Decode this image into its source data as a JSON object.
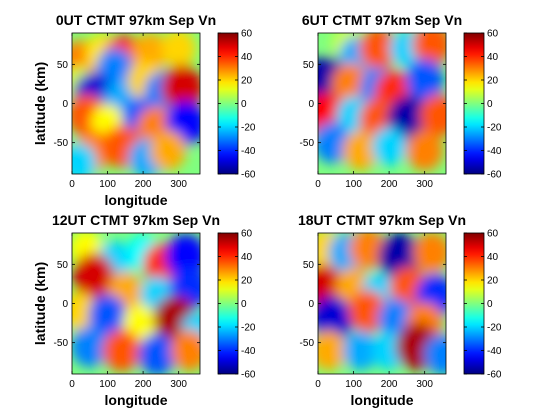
{
  "colormap": "jet",
  "chart_data": [
    {
      "type": "heatmap",
      "title": "0UT CTMT 97km Sep Vn",
      "xlabel": "longitude",
      "ylabel": "latitude (km)",
      "xlim": [
        0,
        360
      ],
      "ylim": [
        -90,
        90
      ],
      "xticks": [
        "0",
        "100",
        "200",
        "300"
      ],
      "yticks": [
        "-50",
        "0",
        "50"
      ],
      "colorbar": {
        "range": [
          -60,
          60
        ],
        "ticks": [
          "60",
          "40",
          "20",
          "0",
          "-20",
          "-40",
          "-60"
        ]
      },
      "features": [
        {
          "lon": 25,
          "lat": 55,
          "value": 30
        },
        {
          "lon": 85,
          "lat": 65,
          "value": 18
        },
        {
          "lon": 145,
          "lat": 60,
          "value": 40
        },
        {
          "lon": 220,
          "lat": 65,
          "value": 25
        },
        {
          "lon": 300,
          "lat": 70,
          "value": 20
        },
        {
          "lon": 120,
          "lat": 45,
          "value": -30
        },
        {
          "lon": 20,
          "lat": 25,
          "value": 10
        },
        {
          "lon": 60,
          "lat": 10,
          "value": -50
        },
        {
          "lon": 140,
          "lat": 5,
          "value": -25
        },
        {
          "lon": 205,
          "lat": 30,
          "value": 20
        },
        {
          "lon": 255,
          "lat": 15,
          "value": -30
        },
        {
          "lon": 310,
          "lat": 20,
          "value": 50
        },
        {
          "lon": 40,
          "lat": -15,
          "value": 35
        },
        {
          "lon": 100,
          "lat": -25,
          "value": 15
        },
        {
          "lon": 195,
          "lat": -20,
          "value": -35
        },
        {
          "lon": 235,
          "lat": -30,
          "value": 30
        },
        {
          "lon": 320,
          "lat": -25,
          "value": -45
        },
        {
          "lon": 60,
          "lat": -60,
          "value": 30
        },
        {
          "lon": 140,
          "lat": -55,
          "value": 35
        },
        {
          "lon": 210,
          "lat": -70,
          "value": -25
        },
        {
          "lon": 270,
          "lat": -60,
          "value": 25
        },
        {
          "lon": 20,
          "lat": -75,
          "value": -20
        }
      ]
    },
    {
      "type": "heatmap",
      "title": "6UT CTMT 97km Sep Vn",
      "xlabel": "",
      "ylabel": "",
      "xlim": [
        0,
        360
      ],
      "ylim": [
        -90,
        90
      ],
      "xticks": [
        "0",
        "100",
        "200",
        "300"
      ],
      "yticks": [
        "-50",
        "0",
        "50"
      ],
      "colorbar": {
        "range": [
          -60,
          60
        ],
        "ticks": [
          "60",
          "40",
          "20",
          "0",
          "-20",
          "-40",
          "-60"
        ]
      },
      "features": [
        {
          "lon": 25,
          "lat": 30,
          "value": -55
        },
        {
          "lon": 85,
          "lat": 75,
          "value": 10
        },
        {
          "lon": 110,
          "lat": 60,
          "value": -25
        },
        {
          "lon": 170,
          "lat": 70,
          "value": 35
        },
        {
          "lon": 250,
          "lat": 70,
          "value": -20
        },
        {
          "lon": 320,
          "lat": 75,
          "value": 35
        },
        {
          "lon": 90,
          "lat": 25,
          "value": 30
        },
        {
          "lon": 170,
          "lat": 20,
          "value": -30
        },
        {
          "lon": 215,
          "lat": 15,
          "value": 40
        },
        {
          "lon": 300,
          "lat": 30,
          "value": -35
        },
        {
          "lon": 20,
          "lat": -15,
          "value": 45
        },
        {
          "lon": 100,
          "lat": -15,
          "value": -20
        },
        {
          "lon": 170,
          "lat": -20,
          "value": 35
        },
        {
          "lon": 255,
          "lat": -20,
          "value": -55
        },
        {
          "lon": 340,
          "lat": -15,
          "value": 35
        },
        {
          "lon": 40,
          "lat": -50,
          "value": -30
        },
        {
          "lon": 120,
          "lat": -60,
          "value": 25
        },
        {
          "lon": 200,
          "lat": -55,
          "value": -20
        },
        {
          "lon": 300,
          "lat": -60,
          "value": 30
        }
      ]
    },
    {
      "type": "heatmap",
      "title": "12UT CTMT 97km Sep Vn",
      "xlabel": "longitude",
      "ylabel": "latitude (km)",
      "xlim": [
        0,
        360
      ],
      "ylim": [
        -90,
        90
      ],
      "xticks": [
        "0",
        "100",
        "200",
        "300"
      ],
      "yticks": [
        "-50",
        "0",
        "50"
      ],
      "colorbar": {
        "range": [
          -60,
          60
        ],
        "ticks": [
          "60",
          "40",
          "20",
          "0",
          "-20",
          "-40",
          "-60"
        ]
      },
      "features": [
        {
          "lon": 40,
          "lat": 70,
          "value": 15
        },
        {
          "lon": 120,
          "lat": 55,
          "value": -20
        },
        {
          "lon": 200,
          "lat": 65,
          "value": -15
        },
        {
          "lon": 255,
          "lat": 50,
          "value": 40
        },
        {
          "lon": 320,
          "lat": 60,
          "value": -45
        },
        {
          "lon": 60,
          "lat": 35,
          "value": 50
        },
        {
          "lon": 150,
          "lat": 15,
          "value": 25
        },
        {
          "lon": 240,
          "lat": 10,
          "value": -20
        },
        {
          "lon": 330,
          "lat": 20,
          "value": -40
        },
        {
          "lon": 20,
          "lat": -10,
          "value": 20
        },
        {
          "lon": 100,
          "lat": -15,
          "value": -35
        },
        {
          "lon": 190,
          "lat": -25,
          "value": 15
        },
        {
          "lon": 290,
          "lat": -20,
          "value": 55
        },
        {
          "lon": 355,
          "lat": -35,
          "value": -20
        },
        {
          "lon": 50,
          "lat": -55,
          "value": -30
        },
        {
          "lon": 140,
          "lat": -60,
          "value": 35
        },
        {
          "lon": 240,
          "lat": -65,
          "value": -35
        },
        {
          "lon": 330,
          "lat": -60,
          "value": 30
        }
      ]
    },
    {
      "type": "heatmap",
      "title": "18UT CTMT 97km Sep Vn",
      "xlabel": "longitude",
      "ylabel": "",
      "xlim": [
        0,
        360
      ],
      "ylim": [
        -90,
        90
      ],
      "xticks": [
        "0",
        "100",
        "200",
        "300"
      ],
      "yticks": [
        "-50",
        "0",
        "50"
      ],
      "colorbar": {
        "range": [
          -60,
          60
        ],
        "ticks": [
          "60",
          "40",
          "20",
          "0",
          "-20",
          "-40",
          "-60"
        ]
      },
      "features": [
        {
          "lon": 20,
          "lat": 70,
          "value": 20
        },
        {
          "lon": 80,
          "lat": 65,
          "value": -25
        },
        {
          "lon": 140,
          "lat": 70,
          "value": 30
        },
        {
          "lon": 230,
          "lat": 60,
          "value": -55
        },
        {
          "lon": 320,
          "lat": 65,
          "value": 30
        },
        {
          "lon": 15,
          "lat": 20,
          "value": 50
        },
        {
          "lon": 100,
          "lat": 20,
          "value": 25
        },
        {
          "lon": 170,
          "lat": 15,
          "value": -20
        },
        {
          "lon": 255,
          "lat": 20,
          "value": 35
        },
        {
          "lon": 330,
          "lat": 10,
          "value": -40
        },
        {
          "lon": 40,
          "lat": -20,
          "value": -50
        },
        {
          "lon": 140,
          "lat": -10,
          "value": 35
        },
        {
          "lon": 220,
          "lat": -20,
          "value": -30
        },
        {
          "lon": 300,
          "lat": -25,
          "value": 30
        },
        {
          "lon": 30,
          "lat": -60,
          "value": 25
        },
        {
          "lon": 120,
          "lat": -60,
          "value": -25
        },
        {
          "lon": 200,
          "lat": -60,
          "value": -20
        },
        {
          "lon": 280,
          "lat": -55,
          "value": 55
        },
        {
          "lon": 350,
          "lat": -65,
          "value": -30
        }
      ]
    }
  ]
}
